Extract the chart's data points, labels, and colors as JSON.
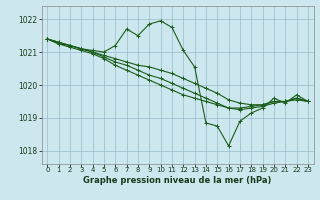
{
  "background_color": "#cce8ee",
  "grid_color": "#99bbcc",
  "line_color": "#1a5c1a",
  "marker_color": "#1a5c1a",
  "title": "Graphe pression niveau de la mer (hPa)",
  "xlim": [
    -0.5,
    23.5
  ],
  "ylim": [
    1017.6,
    1022.4
  ],
  "yticks": [
    1018,
    1019,
    1020,
    1021,
    1022
  ],
  "xticks": [
    0,
    1,
    2,
    3,
    4,
    5,
    6,
    7,
    8,
    9,
    10,
    11,
    12,
    13,
    14,
    15,
    16,
    17,
    18,
    19,
    20,
    21,
    22,
    23
  ],
  "series": [
    {
      "x": [
        0,
        1,
        2,
        3,
        4,
        5,
        6,
        7,
        8,
        9,
        10,
        11,
        12,
        13,
        14,
        15,
        16,
        17,
        18,
        19,
        20,
        21,
        22,
        23
      ],
      "y": [
        1021.4,
        1021.25,
        1021.2,
        1021.1,
        1021.05,
        1021.0,
        1021.2,
        1021.7,
        1021.5,
        1021.85,
        1021.95,
        1021.75,
        1021.05,
        1020.55,
        1018.85,
        1018.75,
        1018.15,
        1018.9,
        1019.15,
        1019.3,
        1019.6,
        1019.45,
        1019.7,
        1019.5
      ]
    },
    {
      "x": [
        0,
        1,
        2,
        3,
        4,
        5,
        6,
        7,
        8,
        9,
        10,
        11,
        12,
        13,
        14,
        15,
        16,
        17,
        18,
        19,
        20,
        21,
        22,
        23
      ],
      "y": [
        1021.4,
        1021.3,
        1021.2,
        1021.1,
        1021.0,
        1020.9,
        1020.8,
        1020.7,
        1020.6,
        1020.55,
        1020.45,
        1020.35,
        1020.2,
        1020.05,
        1019.9,
        1019.75,
        1019.55,
        1019.45,
        1019.4,
        1019.4,
        1019.5,
        1019.5,
        1019.6,
        1019.5
      ]
    },
    {
      "x": [
        0,
        1,
        2,
        3,
        4,
        5,
        6,
        7,
        8,
        9,
        10,
        11,
        12,
        13,
        14,
        15,
        16,
        17,
        18,
        19,
        20,
        21,
        22,
        23
      ],
      "y": [
        1021.4,
        1021.3,
        1021.2,
        1021.1,
        1021.0,
        1020.85,
        1020.7,
        1020.6,
        1020.45,
        1020.3,
        1020.2,
        1020.05,
        1019.9,
        1019.75,
        1019.6,
        1019.45,
        1019.3,
        1019.3,
        1019.35,
        1019.4,
        1019.5,
        1019.5,
        1019.6,
        1019.5
      ]
    },
    {
      "x": [
        0,
        1,
        2,
        3,
        4,
        5,
        6,
        7,
        8,
        9,
        10,
        11,
        12,
        13,
        14,
        15,
        16,
        17,
        18,
        19,
        20,
        21,
        22,
        23
      ],
      "y": [
        1021.4,
        1021.25,
        1021.15,
        1021.05,
        1020.95,
        1020.8,
        1020.6,
        1020.45,
        1020.3,
        1020.15,
        1020.0,
        1019.85,
        1019.7,
        1019.6,
        1019.5,
        1019.4,
        1019.3,
        1019.25,
        1019.3,
        1019.35,
        1019.45,
        1019.5,
        1019.55,
        1019.5
      ]
    }
  ]
}
